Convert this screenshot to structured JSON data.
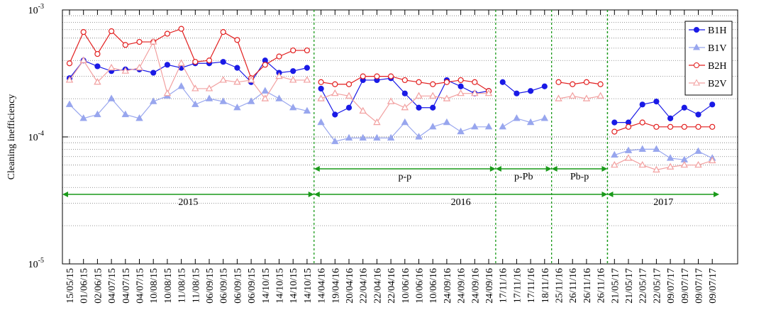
{
  "chart_data": {
    "type": "line",
    "y_label": "Cleaning inefficiency",
    "log_y": true,
    "ylim": [
      1e-05,
      0.001
    ],
    "yticks": [
      {
        "value": 1e-05,
        "label": "10",
        "exponent": "-5"
      },
      {
        "value": 0.0001,
        "label": "10",
        "exponent": "-4"
      },
      {
        "value": 0.001,
        "label": "10",
        "exponent": "-3"
      }
    ],
    "minor_yticks": [
      2e-05,
      3e-05,
      4e-05,
      5e-05,
      6e-05,
      7e-05,
      8e-05,
      9e-05,
      0.0002,
      0.0003,
      0.0004,
      0.0005,
      0.0006,
      0.0007,
      0.0008,
      0.0009
    ],
    "grid": true,
    "legend": "top-right",
    "categories": [
      "15/05/15",
      "01/06/15",
      "02/06/15",
      "04/07/15",
      "04/07/15",
      "04/07/15",
      "10/08/15",
      "10/08/15",
      "11/08/15",
      "11/08/15",
      "06/09/15",
      "06/09/15",
      "06/09/15",
      "06/09/15",
      "14/10/15",
      "14/10/15",
      "14/10/15",
      "14/10/15",
      "14/04/16",
      "19/04/16",
      "20/04/16",
      "22/04/16",
      "22/04/16",
      "22/04/16",
      "10/06/16",
      "10/06/16",
      "10/06/16",
      "24/09/16",
      "24/09/16",
      "24/09/16",
      "24/09/16",
      "17/11/16",
      "17/11/16",
      "17/11/16",
      "18/11/16",
      "25/11/16",
      "26/11/16",
      "26/11/16",
      "26/11/16",
      "21/05/17",
      "21/05/17",
      "22/05/17",
      "22/05/17",
      "09/07/17",
      "09/07/17",
      "09/07/17",
      "09/07/17"
    ],
    "periods": [
      {
        "label": "2015",
        "first": 0,
        "last": 17
      },
      {
        "label": "2016",
        "first": 18,
        "last": 38
      },
      {
        "label": "2017",
        "first": 39,
        "last": 46
      }
    ],
    "subperiods": [
      {
        "label": "p-p",
        "first": 18,
        "last": 30
      },
      {
        "label": "p-Pb",
        "first": 31,
        "last": 34
      },
      {
        "label": "Pb-p",
        "first": 35,
        "last": 38
      }
    ],
    "annotation_color": "#1a9a1a",
    "series": [
      {
        "name": "B1H",
        "color": "#1a1ae6",
        "marker": "circle",
        "filled": true,
        "values": [
          0.00029,
          0.0004,
          0.00036,
          0.00033,
          0.00034,
          0.00034,
          0.00032,
          0.00037,
          0.00035,
          0.00038,
          0.00038,
          0.00039,
          0.00035,
          0.00027,
          0.0004,
          0.00032,
          0.00033,
          0.00035,
          0.00024,
          0.00015,
          0.00017,
          0.00028,
          0.00028,
          0.00029,
          0.00022,
          0.00017,
          0.00017,
          0.00028,
          0.00025,
          0.00022,
          0.00023,
          0.00027,
          0.00022,
          0.00023,
          0.00025,
          null,
          null,
          null,
          null,
          0.00013,
          0.00013,
          0.00018,
          0.00019,
          0.00014,
          0.00017,
          0.00015,
          0.00018
        ]
      },
      {
        "name": "B1V",
        "color": "#98a6ee",
        "marker": "triangle",
        "filled": true,
        "values": [
          0.00018,
          0.00014,
          0.00015,
          0.0002,
          0.00015,
          0.00014,
          0.00019,
          0.00021,
          0.00025,
          0.00018,
          0.0002,
          0.00019,
          0.00017,
          0.00019,
          0.00023,
          0.0002,
          0.00017,
          0.00016,
          0.00013,
          9.2e-05,
          9.8e-05,
          9.8e-05,
          9.8e-05,
          9.8e-05,
          0.00013,
          0.0001,
          0.00012,
          0.00013,
          0.00011,
          0.00012,
          0.00012,
          0.00012,
          0.00014,
          0.00013,
          0.00014,
          null,
          null,
          null,
          null,
          7.2e-05,
          7.8e-05,
          8e-05,
          8e-05,
          6.8e-05,
          6.6e-05,
          7.7e-05,
          6.8e-05
        ]
      },
      {
        "name": "B2H",
        "color": "#e21e1e",
        "marker": "circle",
        "filled": false,
        "values": [
          0.00038,
          0.00067,
          0.00045,
          0.00068,
          0.00053,
          0.00056,
          0.00056,
          0.00065,
          0.00071,
          0.00039,
          0.0004,
          0.00067,
          0.00058,
          0.00029,
          0.00037,
          0.00043,
          0.00048,
          0.00048,
          0.00027,
          0.00026,
          0.00026,
          0.0003,
          0.0003,
          0.0003,
          0.00028,
          0.00027,
          0.00026,
          0.00027,
          0.00028,
          0.00027,
          0.00023,
          null,
          null,
          null,
          null,
          0.00027,
          0.00026,
          0.00027,
          0.00026,
          0.00011,
          0.00012,
          0.00013,
          0.00012,
          0.00012,
          0.00012,
          0.00012,
          0.00012
        ]
      },
      {
        "name": "B2V",
        "color": "#f2a0a0",
        "marker": "triangle",
        "filled": false,
        "values": [
          0.00028,
          0.0004,
          0.00027,
          0.00035,
          0.00033,
          0.00035,
          0.00056,
          0.00022,
          0.00038,
          0.00024,
          0.00024,
          0.00028,
          0.00027,
          0.00028,
          0.0002,
          0.0003,
          0.00028,
          0.00028,
          0.0002,
          0.00022,
          0.00021,
          0.00016,
          0.00013,
          0.00019,
          0.00017,
          0.00021,
          0.00021,
          0.0002,
          0.00022,
          0.00022,
          0.00022,
          null,
          null,
          null,
          null,
          0.0002,
          0.00021,
          0.0002,
          0.00021,
          6e-05,
          6.8e-05,
          6e-05,
          5.5e-05,
          5.8e-05,
          6e-05,
          6e-05,
          6.5e-05
        ]
      }
    ]
  }
}
